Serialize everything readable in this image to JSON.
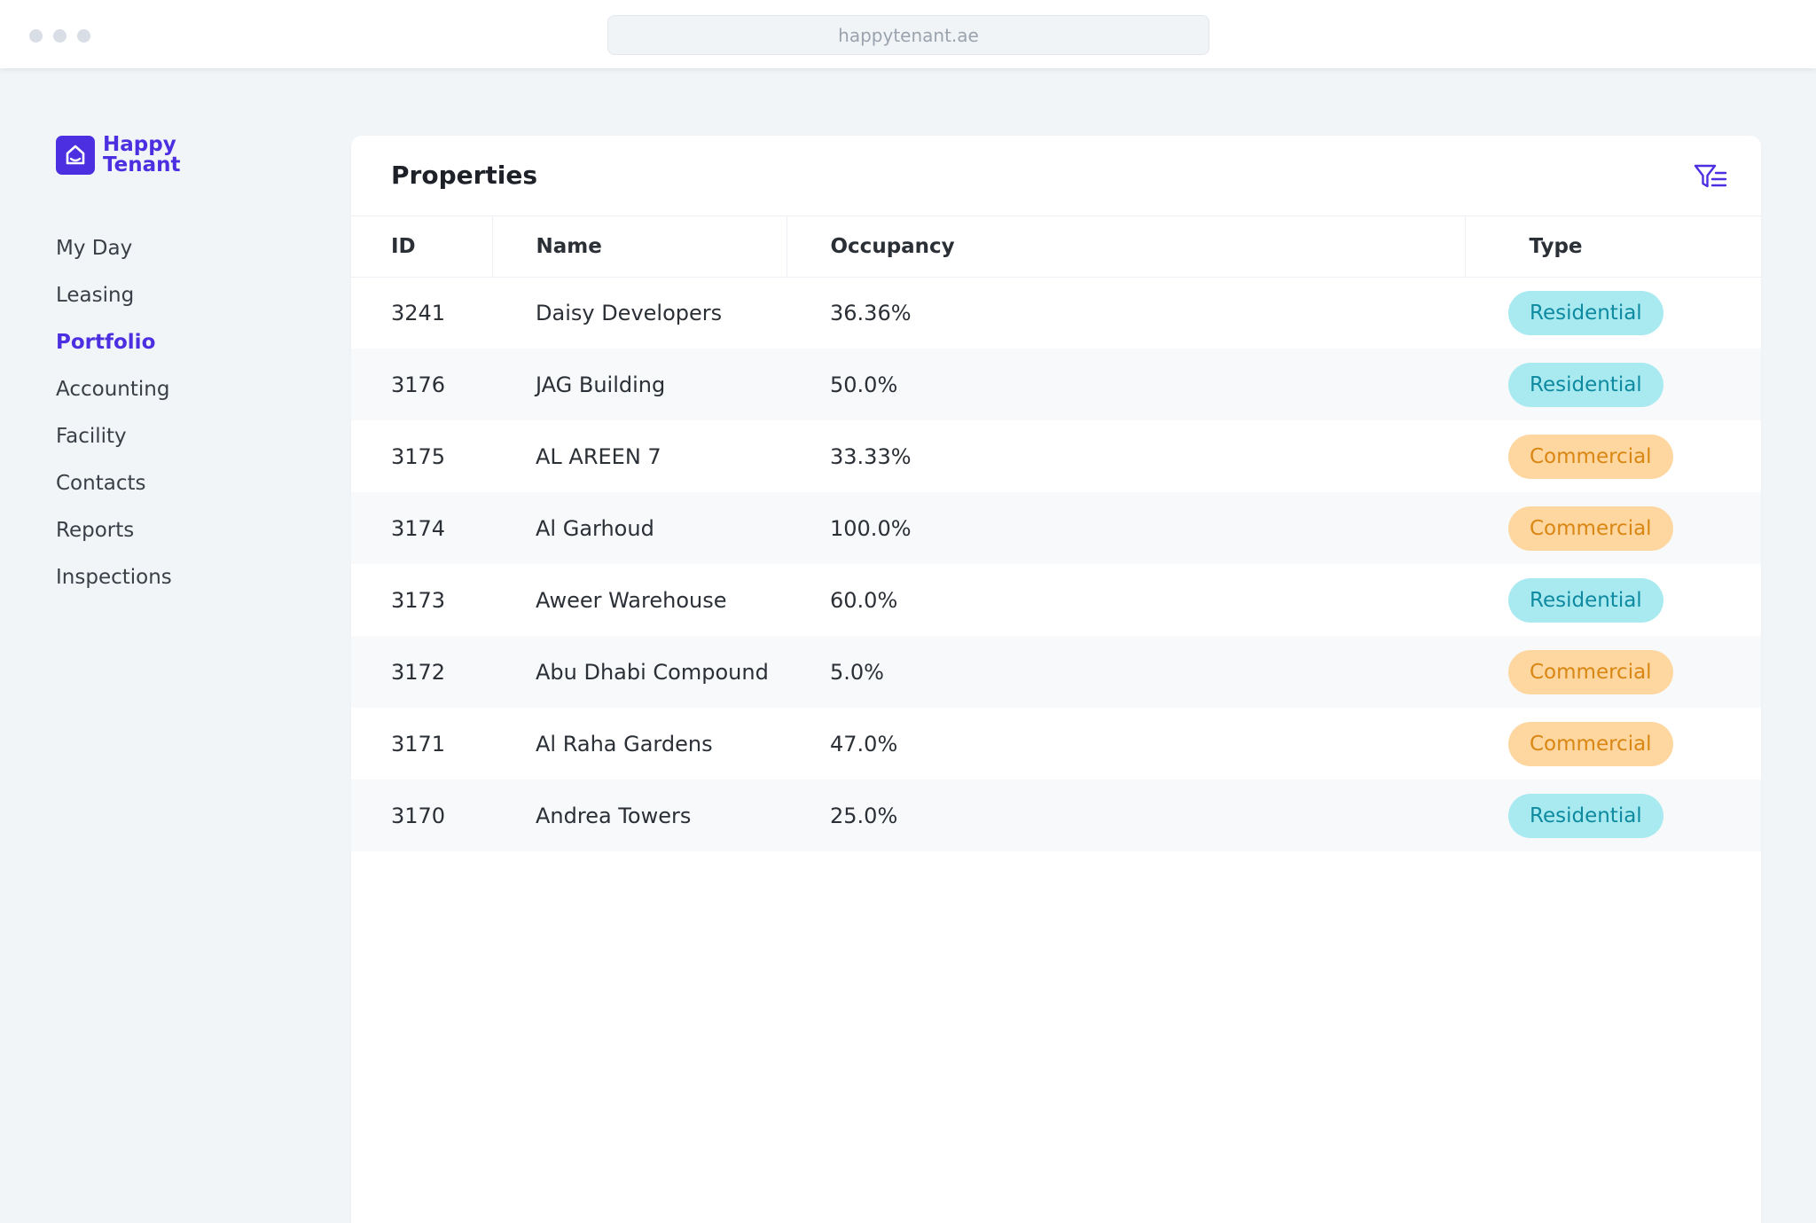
{
  "browser": {
    "url": "happytenant.ae"
  },
  "logo": {
    "line1": "Happy",
    "line2": "Tenant",
    "brand_color": "#4b2fe0"
  },
  "sidebar": {
    "items": [
      {
        "label": "My Day",
        "active": false
      },
      {
        "label": "Leasing",
        "active": false
      },
      {
        "label": "Portfolio",
        "active": true
      },
      {
        "label": "Accounting",
        "active": false
      },
      {
        "label": "Facility",
        "active": false
      },
      {
        "label": "Contacts",
        "active": false
      },
      {
        "label": "Reports",
        "active": false
      },
      {
        "label": "Inspections",
        "active": false
      }
    ]
  },
  "main": {
    "title": "Properties",
    "filter_icon": "filter-list-icon",
    "columns": [
      "ID",
      "Name",
      "Occupancy",
      "Type"
    ],
    "rows": [
      {
        "id": "3241",
        "name": "Daisy Developers",
        "occupancy": "36.36%",
        "type": "Residential"
      },
      {
        "id": "3176",
        "name": "JAG Building",
        "occupancy": "50.0%",
        "type": "Residential"
      },
      {
        "id": "3175",
        "name": "AL AREEN 7",
        "occupancy": "33.33%",
        "type": "Commercial"
      },
      {
        "id": "3174",
        "name": "Al Garhoud",
        "occupancy": "100.0%",
        "type": "Commercial"
      },
      {
        "id": "3173",
        "name": "Aweer Warehouse",
        "occupancy": "60.0%",
        "type": "Residential"
      },
      {
        "id": "3172",
        "name": "Abu Dhabi Compound",
        "occupancy": "5.0%",
        "type": "Commercial"
      },
      {
        "id": "3171",
        "name": "Al Raha Gardens",
        "occupancy": "47.0%",
        "type": "Commercial"
      },
      {
        "id": "3170",
        "name": "Andrea Towers",
        "occupancy": "25.0%",
        "type": "Residential"
      }
    ]
  },
  "colors": {
    "residential_bg": "#a9eaf1",
    "residential_text": "#0e8aa0",
    "commercial_bg": "#fed6a0",
    "commercial_text": "#d98612"
  }
}
